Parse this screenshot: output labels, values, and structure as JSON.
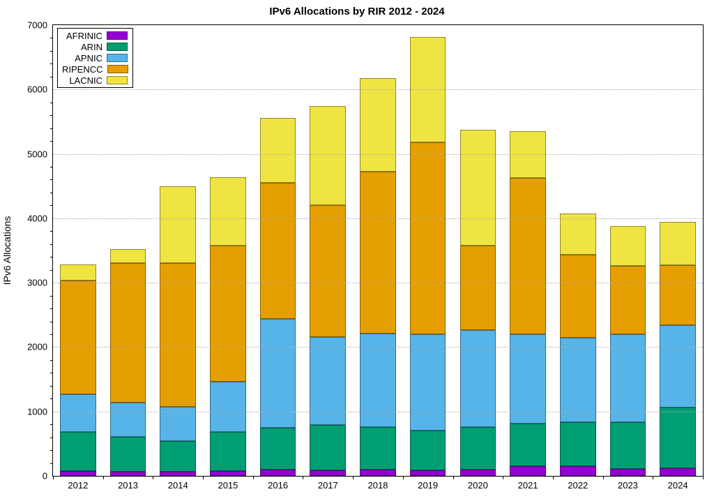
{
  "chart": {
    "type": "stacked-bar",
    "title": "IPv6 Allocations by RIR 2012 - 2024",
    "title_fontsize": 15,
    "ylabel": "IPv6 Allocations",
    "label_fontsize": 14,
    "background_color": "#ffffff",
    "grid_color": "#aaaaaa",
    "ylim": [
      0,
      7000
    ],
    "ytick_step": 1000,
    "y_minor_step": 200,
    "bar_width_ratio": 0.72,
    "years": [
      "2012",
      "2013",
      "2014",
      "2015",
      "2016",
      "2017",
      "2018",
      "2019",
      "2020",
      "2021",
      "2022",
      "2023",
      "2024"
    ],
    "series_order": [
      "AFRINIC",
      "ARIN",
      "APNIC",
      "RIPENCC",
      "LACNIC"
    ],
    "colors": {
      "AFRINIC": "#9400d3",
      "ARIN": "#009e73",
      "APNIC": "#56b4e9",
      "RIPENCC": "#e69f00",
      "LACNIC": "#f0e442"
    },
    "data": {
      "AFRINIC": [
        80,
        70,
        60,
        80,
        100,
        90,
        100,
        90,
        100,
        150,
        150,
        110,
        120
      ],
      "ARIN": [
        600,
        540,
        480,
        600,
        650,
        700,
        660,
        610,
        660,
        660,
        680,
        720,
        940
      ],
      "APNIC": [
        590,
        530,
        530,
        780,
        1690,
        1370,
        1450,
        1500,
        1500,
        1390,
        1320,
        1370,
        1280
      ],
      "RIPENCC": [
        1760,
        2160,
        2230,
        2120,
        2110,
        2040,
        2520,
        2980,
        1320,
        2430,
        1280,
        1060,
        930
      ],
      "LACNIC": [
        250,
        220,
        1200,
        1060,
        1010,
        1540,
        1450,
        1640,
        1800,
        720,
        640,
        620,
        670
      ]
    },
    "legend": {
      "position": "top-left",
      "items": [
        "AFRINIC",
        "ARIN",
        "APNIC",
        "RIPENCC",
        "LACNIC"
      ]
    },
    "tick_fontsize": 13
  }
}
